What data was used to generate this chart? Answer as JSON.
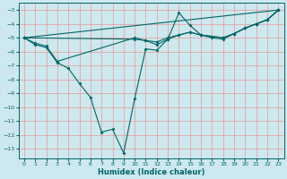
{
  "xlabel": "Humidex (Indice chaleur)",
  "xlim": [
    -0.5,
    23.5
  ],
  "ylim": [
    -13.7,
    -2.5
  ],
  "yticks": [
    -3,
    -4,
    -5,
    -6,
    -7,
    -8,
    -9,
    -10,
    -11,
    -12,
    -13
  ],
  "xticks": [
    0,
    1,
    2,
    3,
    4,
    5,
    6,
    7,
    8,
    9,
    10,
    11,
    12,
    13,
    14,
    15,
    16,
    17,
    18,
    19,
    20,
    21,
    22,
    23
  ],
  "bg_color": "#cde8ee",
  "line_color": "#006666",
  "grid_color": "#e89898",
  "lines": [
    {
      "x": [
        0,
        1,
        2,
        3,
        4,
        5,
        6,
        7,
        8,
        9,
        10,
        11,
        12,
        13,
        14,
        15,
        16,
        17,
        18,
        19,
        20,
        21,
        22,
        23
      ],
      "y": [
        -5,
        -5.5,
        -5.7,
        -6.8,
        -7.2,
        -8.3,
        -9.3,
        -11.8,
        -11.6,
        -13.3,
        -9.4,
        -5.8,
        -5.9,
        -5.1,
        -3.2,
        -4.1,
        -4.8,
        -4.9,
        -5.0,
        -4.7,
        -4.3,
        -4.0,
        -3.7,
        -3.0
      ]
    },
    {
      "x": [
        0,
        1,
        2,
        3,
        10,
        11,
        12,
        13,
        14,
        15,
        16,
        17,
        18,
        19,
        20,
        21,
        22,
        23
      ],
      "y": [
        -5,
        -5.4,
        -5.6,
        -6.7,
        -5.0,
        -5.2,
        -5.5,
        -5.1,
        -4.8,
        -4.6,
        -4.8,
        -5.0,
        -5.1,
        -4.7,
        -4.3,
        -4.0,
        -3.7,
        -3.0
      ]
    },
    {
      "x": [
        0,
        10,
        11,
        12,
        13,
        14,
        15,
        16,
        17,
        18,
        19,
        20,
        21,
        22,
        23
      ],
      "y": [
        -5,
        -5.1,
        -5.2,
        -5.3,
        -5.0,
        -4.8,
        -4.6,
        -4.8,
        -4.9,
        -5.0,
        -4.7,
        -4.3,
        -4.0,
        -3.7,
        -3.0
      ]
    },
    {
      "x": [
        0,
        23
      ],
      "y": [
        -5,
        -3.0
      ]
    }
  ]
}
